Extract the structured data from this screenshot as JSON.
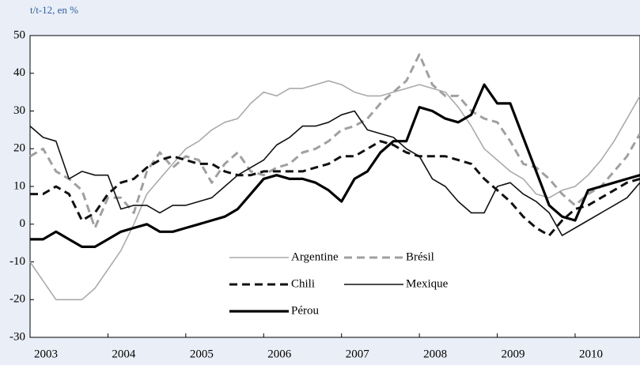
{
  "chart_data": {
    "type": "line",
    "subtitle": "t/t-12, en %",
    "categories": [
      "2003",
      null,
      null,
      null,
      null,
      null,
      "2004",
      null,
      null,
      null,
      null,
      null,
      "2005",
      null,
      null,
      null,
      null,
      null,
      "2006",
      null,
      null,
      null,
      null,
      null,
      "2007",
      null,
      null,
      null,
      null,
      null,
      "2008",
      null,
      null,
      null,
      null,
      null,
      "2009",
      null,
      null,
      null,
      null,
      null,
      "2010",
      null,
      null,
      null,
      null,
      null
    ],
    "series": [
      {
        "name": "Argentine",
        "color": "#aaaaaa",
        "width": 1.6,
        "dash": false,
        "values": [
          -10,
          -15,
          -20,
          -20,
          -20,
          -17,
          -12,
          -7,
          0,
          8,
          12,
          16,
          20,
          22,
          25,
          27,
          28,
          32,
          35,
          34,
          36,
          36,
          37,
          38,
          37,
          35,
          34,
          34,
          35,
          36,
          37,
          36,
          35,
          31,
          26,
          20,
          17,
          14,
          12,
          8,
          7,
          9,
          10,
          13,
          17,
          22,
          28,
          34
        ]
      },
      {
        "name": "Brésil",
        "color": "#a0a0a0",
        "width": 3,
        "dash": true,
        "values": [
          18,
          20,
          14,
          12,
          9,
          -1,
          7,
          7,
          3,
          14,
          19,
          15,
          18,
          17,
          11,
          16,
          19,
          14,
          13,
          15,
          16,
          19,
          20,
          22,
          25,
          26,
          28,
          32,
          35,
          38,
          45,
          37,
          34,
          34,
          30,
          28,
          27,
          22,
          16,
          15,
          12,
          8,
          5,
          8,
          10,
          14,
          18,
          24
        ]
      },
      {
        "name": "Chili",
        "color": "#111111",
        "width": 3,
        "dash": true,
        "values": [
          8,
          8,
          10,
          8,
          1,
          3,
          8,
          11,
          12,
          15,
          17,
          18,
          17,
          16,
          16,
          14,
          13,
          13,
          14,
          14,
          14,
          14,
          15,
          16,
          18,
          18,
          20,
          22,
          21,
          19,
          18,
          18,
          18,
          17,
          16,
          12,
          9,
          6,
          2,
          -1,
          -3,
          1,
          4,
          5,
          7,
          9,
          11,
          12
        ]
      },
      {
        "name": "Mexique",
        "color": "#111111",
        "width": 1.6,
        "dash": false,
        "values": [
          26,
          23,
          22,
          12,
          14,
          13,
          13,
          4,
          5,
          5,
          3,
          5,
          5,
          6,
          7,
          10,
          13,
          15,
          17,
          21,
          23,
          26,
          26,
          27,
          29,
          30,
          25,
          24,
          23,
          20,
          18,
          12,
          10,
          6,
          3,
          3,
          10,
          11,
          8,
          6,
          3,
          -3,
          -1,
          1,
          3,
          5,
          7,
          11
        ]
      },
      {
        "name": "Pérou",
        "color": "#000000",
        "width": 3.2,
        "dash": false,
        "values": [
          -4,
          -4,
          -2,
          -4,
          -6,
          -6,
          -4,
          -2,
          -1,
          0,
          -2,
          -2,
          -1,
          0,
          1,
          2,
          4,
          8,
          12,
          13,
          12,
          12,
          11,
          9,
          6,
          12,
          14,
          19,
          22,
          22,
          31,
          30,
          28,
          27,
          29,
          37,
          32,
          32,
          23,
          14,
          5,
          2,
          1,
          9,
          10,
          11,
          12,
          13
        ]
      }
    ],
    "ylim": [
      -30,
      50
    ],
    "yticks": [
      -30,
      -20,
      -10,
      0,
      10,
      20,
      30,
      40,
      50
    ]
  }
}
